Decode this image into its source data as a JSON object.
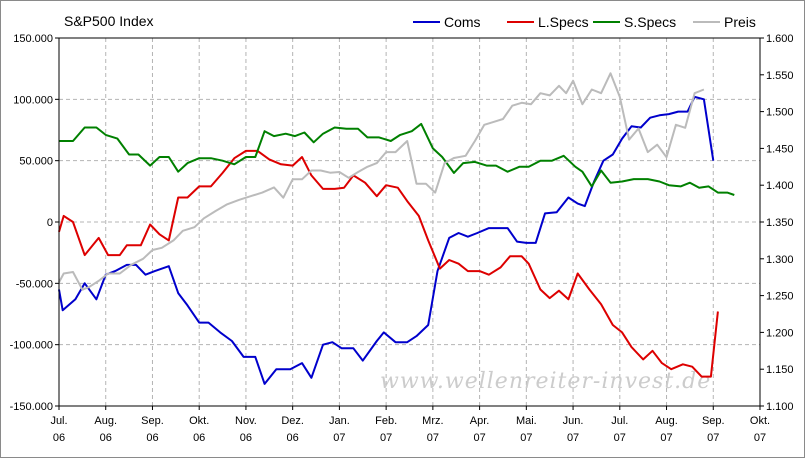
{
  "chart_data": {
    "type": "line",
    "title": "S&P500 Index",
    "watermark": "www.wellenreiter-invest.de",
    "xlim": [
      0,
      15
    ],
    "x_ticks": [
      {
        "month": "Jul.",
        "year": "06"
      },
      {
        "month": "Aug.",
        "year": "06"
      },
      {
        "month": "Sep.",
        "year": "06"
      },
      {
        "month": "Okt.",
        "year": "06"
      },
      {
        "month": "Nov.",
        "year": "06"
      },
      {
        "month": "Dez.",
        "year": "06"
      },
      {
        "month": "Jan.",
        "year": "07"
      },
      {
        "month": "Feb.",
        "year": "07"
      },
      {
        "month": "Mrz.",
        "year": "07"
      },
      {
        "month": "Apr.",
        "year": "07"
      },
      {
        "month": "Mai.",
        "year": "07"
      },
      {
        "month": "Jun.",
        "year": "07"
      },
      {
        "month": "Jul.",
        "year": "07"
      },
      {
        "month": "Aug.",
        "year": "07"
      },
      {
        "month": "Sep.",
        "year": "07"
      },
      {
        "month": "Okt.",
        "year": "07"
      }
    ],
    "y_left": {
      "ylim": [
        -150000,
        150000
      ],
      "ticks": [
        {
          "value": 150000,
          "label": "150.000"
        },
        {
          "value": 100000,
          "label": "100.000"
        },
        {
          "value": 50000,
          "label": "50.000"
        },
        {
          "value": 0,
          "label": "0"
        },
        {
          "value": -50000,
          "label": "-50.000"
        },
        {
          "value": -100000,
          "label": "-100.000"
        },
        {
          "value": -150000,
          "label": "-150.000"
        }
      ]
    },
    "y_right": {
      "ylim": [
        1100,
        1600
      ],
      "ticks": [
        {
          "value": 1600,
          "label": "1.600"
        },
        {
          "value": 1550,
          "label": "1.550"
        },
        {
          "value": 1500,
          "label": "1.500"
        },
        {
          "value": 1450,
          "label": "1.450"
        },
        {
          "value": 1400,
          "label": "1.400"
        },
        {
          "value": 1350,
          "label": "1.350"
        },
        {
          "value": 1300,
          "label": "1.300"
        },
        {
          "value": 1250,
          "label": "1.250"
        },
        {
          "value": 1200,
          "label": "1.200"
        },
        {
          "value": 1150,
          "label": "1.150"
        },
        {
          "value": 1100,
          "label": "1.100"
        }
      ]
    },
    "grid": true,
    "legend_position": "top-right",
    "series": [
      {
        "name": "Coms",
        "color": "#0000cc",
        "axis": "left",
        "points": [
          [
            0,
            -55000
          ],
          [
            0.08,
            -72000
          ],
          [
            0.35,
            -63000
          ],
          [
            0.55,
            -50000
          ],
          [
            0.8,
            -63000
          ],
          [
            1.0,
            -43000
          ],
          [
            1.2,
            -40000
          ],
          [
            1.45,
            -35000
          ],
          [
            1.65,
            -35000
          ],
          [
            1.85,
            -43000
          ],
          [
            2.05,
            -40000
          ],
          [
            2.35,
            -36000
          ],
          [
            2.55,
            -58000
          ],
          [
            2.75,
            -68000
          ],
          [
            3.0,
            -82000
          ],
          [
            3.2,
            -82000
          ],
          [
            3.45,
            -90000
          ],
          [
            3.7,
            -97000
          ],
          [
            3.95,
            -110000
          ],
          [
            4.2,
            -110000
          ],
          [
            4.4,
            -132000
          ],
          [
            4.65,
            -120000
          ],
          [
            4.95,
            -120000
          ],
          [
            5.2,
            -115000
          ],
          [
            5.4,
            -127000
          ],
          [
            5.65,
            -100000
          ],
          [
            5.85,
            -98000
          ],
          [
            6.05,
            -103000
          ],
          [
            6.3,
            -103000
          ],
          [
            6.5,
            -113000
          ],
          [
            6.8,
            -97000
          ],
          [
            6.95,
            -90000
          ],
          [
            7.2,
            -98000
          ],
          [
            7.45,
            -98000
          ],
          [
            7.65,
            -93000
          ],
          [
            7.9,
            -84000
          ],
          [
            8.1,
            -40000
          ],
          [
            8.35,
            -13000
          ],
          [
            8.55,
            -9000
          ],
          [
            8.75,
            -12000
          ],
          [
            8.95,
            -9000
          ],
          [
            9.2,
            -5000
          ],
          [
            9.45,
            -5000
          ],
          [
            9.6,
            -5000
          ],
          [
            9.8,
            -16000
          ],
          [
            10.0,
            -17000
          ],
          [
            10.2,
            -17000
          ],
          [
            10.4,
            7000
          ],
          [
            10.65,
            8000
          ],
          [
            10.9,
            20000
          ],
          [
            11.1,
            15000
          ],
          [
            11.25,
            13000
          ],
          [
            11.45,
            33000
          ],
          [
            11.65,
            50000
          ],
          [
            11.85,
            55000
          ],
          [
            12.05,
            68000
          ],
          [
            12.25,
            78000
          ],
          [
            12.45,
            77000
          ],
          [
            12.65,
            85000
          ],
          [
            12.85,
            87000
          ],
          [
            13.05,
            88000
          ],
          [
            13.25,
            90000
          ],
          [
            13.45,
            90000
          ],
          [
            13.6,
            102000
          ],
          [
            13.8,
            100000
          ],
          [
            14.0,
            50000
          ]
        ]
      },
      {
        "name": "L.Specs",
        "color": "#dd0000",
        "axis": "left",
        "points": [
          [
            0,
            -8000
          ],
          [
            0.1,
            5000
          ],
          [
            0.3,
            0
          ],
          [
            0.55,
            -27000
          ],
          [
            0.85,
            -13000
          ],
          [
            1.05,
            -27000
          ],
          [
            1.3,
            -27000
          ],
          [
            1.45,
            -19000
          ],
          [
            1.75,
            -19000
          ],
          [
            1.95,
            -2000
          ],
          [
            2.15,
            -10000
          ],
          [
            2.35,
            -15000
          ],
          [
            2.55,
            20000
          ],
          [
            2.75,
            20000
          ],
          [
            3.0,
            29000
          ],
          [
            3.25,
            29000
          ],
          [
            3.5,
            40000
          ],
          [
            3.75,
            52000
          ],
          [
            4.0,
            58000
          ],
          [
            4.25,
            58000
          ],
          [
            4.5,
            51000
          ],
          [
            4.75,
            47000
          ],
          [
            5.0,
            46000
          ],
          [
            5.2,
            53000
          ],
          [
            5.4,
            38000
          ],
          [
            5.65,
            27000
          ],
          [
            5.9,
            27000
          ],
          [
            6.1,
            28000
          ],
          [
            6.3,
            38000
          ],
          [
            6.55,
            32000
          ],
          [
            6.8,
            21000
          ],
          [
            7.0,
            30000
          ],
          [
            7.25,
            28000
          ],
          [
            7.45,
            17000
          ],
          [
            7.7,
            5000
          ],
          [
            7.9,
            -15000
          ],
          [
            8.15,
            -38000
          ],
          [
            8.35,
            -31000
          ],
          [
            8.55,
            -34000
          ],
          [
            8.75,
            -40000
          ],
          [
            9.0,
            -40000
          ],
          [
            9.2,
            -43000
          ],
          [
            9.45,
            -37000
          ],
          [
            9.65,
            -28000
          ],
          [
            9.9,
            -28000
          ],
          [
            10.05,
            -34000
          ],
          [
            10.3,
            -55000
          ],
          [
            10.5,
            -62000
          ],
          [
            10.7,
            -56000
          ],
          [
            10.9,
            -63000
          ],
          [
            11.1,
            -42000
          ],
          [
            11.35,
            -55000
          ],
          [
            11.6,
            -67000
          ],
          [
            11.85,
            -84000
          ],
          [
            12.05,
            -90000
          ],
          [
            12.25,
            -102000
          ],
          [
            12.5,
            -112000
          ],
          [
            12.7,
            -105000
          ],
          [
            12.9,
            -115000
          ],
          [
            13.1,
            -120000
          ],
          [
            13.35,
            -116000
          ],
          [
            13.55,
            -118000
          ],
          [
            13.75,
            -126000
          ],
          [
            13.95,
            -126000
          ],
          [
            14.1,
            -73000
          ]
        ]
      },
      {
        "name": "S.Specs",
        "color": "#008000",
        "axis": "left",
        "points": [
          [
            0,
            66000
          ],
          [
            0.15,
            66000
          ],
          [
            0.3,
            66000
          ],
          [
            0.55,
            77000
          ],
          [
            0.8,
            77000
          ],
          [
            1.0,
            71000
          ],
          [
            1.25,
            68000
          ],
          [
            1.5,
            55000
          ],
          [
            1.7,
            55000
          ],
          [
            1.95,
            46000
          ],
          [
            2.15,
            53000
          ],
          [
            2.35,
            53000
          ],
          [
            2.55,
            41000
          ],
          [
            2.75,
            48000
          ],
          [
            3.0,
            52000
          ],
          [
            3.25,
            52000
          ],
          [
            3.5,
            50000
          ],
          [
            3.75,
            47000
          ],
          [
            4.0,
            53000
          ],
          [
            4.2,
            53000
          ],
          [
            4.4,
            74000
          ],
          [
            4.6,
            70000
          ],
          [
            4.85,
            72000
          ],
          [
            5.05,
            70000
          ],
          [
            5.25,
            73000
          ],
          [
            5.45,
            65000
          ],
          [
            5.65,
            72000
          ],
          [
            5.9,
            77000
          ],
          [
            6.15,
            76000
          ],
          [
            6.4,
            76000
          ],
          [
            6.6,
            69000
          ],
          [
            6.85,
            69000
          ],
          [
            7.1,
            66000
          ],
          [
            7.3,
            71000
          ],
          [
            7.55,
            74000
          ],
          [
            7.75,
            80000
          ],
          [
            8.0,
            60000
          ],
          [
            8.2,
            53000
          ],
          [
            8.45,
            40000
          ],
          [
            8.65,
            48000
          ],
          [
            8.9,
            49000
          ],
          [
            9.15,
            46000
          ],
          [
            9.35,
            46000
          ],
          [
            9.6,
            41000
          ],
          [
            9.85,
            45000
          ],
          [
            10.05,
            45000
          ],
          [
            10.3,
            50000
          ],
          [
            10.55,
            50000
          ],
          [
            10.8,
            54000
          ],
          [
            11.05,
            45000
          ],
          [
            11.2,
            41000
          ],
          [
            11.4,
            29000
          ],
          [
            11.6,
            42000
          ],
          [
            11.8,
            32000
          ],
          [
            12.05,
            33000
          ],
          [
            12.3,
            35000
          ],
          [
            12.6,
            35000
          ],
          [
            12.85,
            33000
          ],
          [
            13.05,
            30000
          ],
          [
            13.3,
            29000
          ],
          [
            13.5,
            32000
          ],
          [
            13.7,
            28000
          ],
          [
            13.9,
            29000
          ],
          [
            14.1,
            24000
          ],
          [
            14.3,
            24000
          ],
          [
            14.45,
            22000
          ]
        ]
      },
      {
        "name": "Preis",
        "color": "#bbbbbb",
        "axis": "right",
        "points": [
          [
            0,
            1268
          ],
          [
            0.1,
            1280
          ],
          [
            0.3,
            1282
          ],
          [
            0.5,
            1258
          ],
          [
            0.65,
            1262
          ],
          [
            0.85,
            1270
          ],
          [
            1.05,
            1280
          ],
          [
            1.3,
            1280
          ],
          [
            1.55,
            1292
          ],
          [
            1.8,
            1300
          ],
          [
            2.0,
            1312
          ],
          [
            2.2,
            1315
          ],
          [
            2.45,
            1325
          ],
          [
            2.65,
            1338
          ],
          [
            2.9,
            1343
          ],
          [
            3.1,
            1355
          ],
          [
            3.35,
            1365
          ],
          [
            3.6,
            1374
          ],
          [
            3.85,
            1380
          ],
          [
            4.1,
            1385
          ],
          [
            4.35,
            1390
          ],
          [
            4.6,
            1397
          ],
          [
            4.8,
            1383
          ],
          [
            5.0,
            1408
          ],
          [
            5.2,
            1408
          ],
          [
            5.4,
            1420
          ],
          [
            5.6,
            1420
          ],
          [
            5.8,
            1417
          ],
          [
            6.0,
            1418
          ],
          [
            6.2,
            1410
          ],
          [
            6.4,
            1418
          ],
          [
            6.6,
            1425
          ],
          [
            6.8,
            1430
          ],
          [
            7.0,
            1445
          ],
          [
            7.2,
            1445
          ],
          [
            7.45,
            1460
          ],
          [
            7.65,
            1402
          ],
          [
            7.85,
            1402
          ],
          [
            8.05,
            1390
          ],
          [
            8.25,
            1430
          ],
          [
            8.45,
            1437
          ],
          [
            8.7,
            1440
          ],
          [
            8.9,
            1460
          ],
          [
            9.1,
            1482
          ],
          [
            9.3,
            1486
          ],
          [
            9.5,
            1490
          ],
          [
            9.7,
            1508
          ],
          [
            9.9,
            1512
          ],
          [
            10.1,
            1510
          ],
          [
            10.3,
            1525
          ],
          [
            10.5,
            1522
          ],
          [
            10.7,
            1535
          ],
          [
            10.85,
            1525
          ],
          [
            11.0,
            1542
          ],
          [
            11.2,
            1510
          ],
          [
            11.4,
            1530
          ],
          [
            11.6,
            1525
          ],
          [
            11.8,
            1552
          ],
          [
            12.0,
            1520
          ],
          [
            12.2,
            1462
          ],
          [
            12.4,
            1477
          ],
          [
            12.6,
            1445
          ],
          [
            12.8,
            1455
          ],
          [
            13.0,
            1438
          ],
          [
            13.2,
            1482
          ],
          [
            13.4,
            1478
          ],
          [
            13.6,
            1525
          ],
          [
            13.8,
            1530
          ]
        ]
      }
    ]
  }
}
